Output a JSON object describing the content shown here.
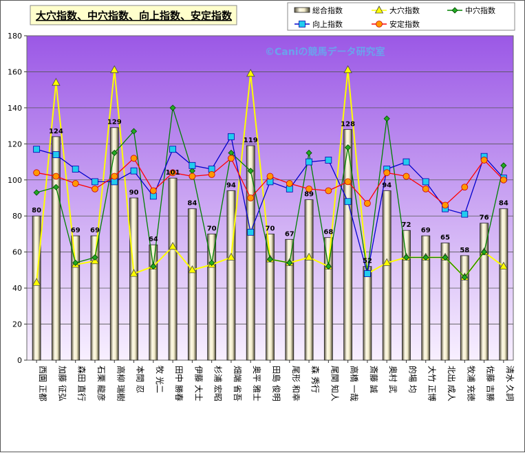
{
  "chart_data": {
    "type": "bar",
    "title": "大穴指数、中穴指数、向上指数、安定指数",
    "watermark": "©Caniの競馬データ研究室",
    "categories": [
      "西園 正都",
      "加藤 征弘",
      "森田 直行",
      "石栗 龍彦",
      "高柳 瑞樹",
      "本間 忍",
      "牧 光二",
      "田中 勝春",
      "伊藤 大士",
      "杉浦 宏昭",
      "畑端 省吾",
      "奥平 雅士",
      "田島 俊明",
      "尾形 和幸",
      "森 秀行",
      "尾関 知人",
      "高橋 一哉",
      "斎藤 誠",
      "奥村 武",
      "的場 均",
      "大竹 正博",
      "北出 成人",
      "牧浦 充徳",
      "佐藤 吉勝",
      "清水 久詞"
    ],
    "series": [
      {
        "name": "総合指数",
        "kind": "bar",
        "values": [
          80,
          124,
          69,
          69,
          129,
          90,
          64,
          101,
          84,
          70,
          94,
          119,
          70,
          67,
          89,
          68,
          128,
          52,
          94,
          72,
          69,
          65,
          58,
          76,
          84
        ]
      },
      {
        "name": "大穴指数",
        "kind": "line",
        "color": "#ffff00",
        "marker": "triangle",
        "values": [
          43,
          154,
          53,
          55,
          161,
          48,
          52,
          63,
          50,
          53,
          57,
          159,
          56,
          54,
          57,
          52,
          161,
          48,
          54,
          57,
          57,
          57,
          46,
          60,
          52
        ]
      },
      {
        "name": "中穴指数",
        "kind": "line",
        "color": "#008000",
        "marker": "diamond",
        "values": [
          93,
          96,
          54,
          57,
          115,
          127,
          52,
          140,
          105,
          54,
          115,
          105,
          56,
          54,
          115,
          52,
          118,
          49,
          134,
          57,
          57,
          57,
          46,
          60,
          108
        ]
      },
      {
        "name": "向上指数",
        "kind": "line",
        "color": "#0000cc",
        "marker": "square",
        "values": [
          117,
          114,
          106,
          99,
          99,
          105,
          91,
          117,
          108,
          106,
          124,
          71,
          99,
          95,
          110,
          111,
          88,
          48,
          106,
          110,
          99,
          84,
          81,
          113,
          101
        ]
      },
      {
        "name": "安定指数",
        "kind": "line",
        "color": "#ff0000",
        "marker": "circle",
        "values": [
          104,
          102,
          98,
          95,
          102,
          112,
          94,
          104,
          102,
          103,
          112,
          90,
          102,
          98,
          95,
          94,
          99,
          87,
          104,
          102,
          95,
          86,
          96,
          111,
          100
        ]
      }
    ],
    "bar_labels": [
      "80",
      "124",
      "69",
      "69",
      "129",
      "90",
      "64",
      "101",
      "84",
      "70",
      "94",
      "119",
      "70",
      "67",
      "89",
      "68",
      "128",
      "52",
      "94",
      "72",
      "69",
      "65",
      "58",
      "76",
      "84"
    ],
    "ylim": [
      0,
      180
    ],
    "yticks": [
      "0",
      "20",
      "40",
      "60",
      "80",
      "100",
      "120",
      "140",
      "160",
      "180"
    ],
    "grid": true,
    "legend_position": "top-right",
    "colors": {
      "plot_bg_top": "#9b58e6",
      "plot_bg_bottom": "#f8f0ff",
      "bar_fill": "#f2eccc",
      "title_box": "#ffffcc"
    }
  }
}
